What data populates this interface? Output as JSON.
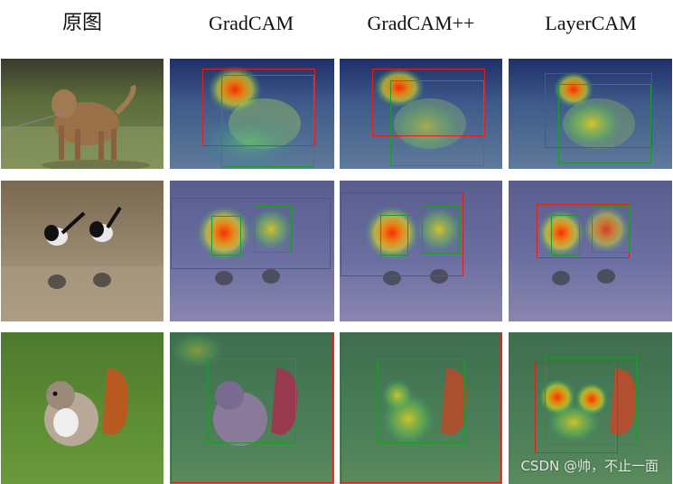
{
  "columns": [
    {
      "title": "原图"
    },
    {
      "title": "GradCAM"
    },
    {
      "title": "GradCAM++"
    },
    {
      "title": "LayerCAM"
    }
  ],
  "rows": [
    {
      "subject": "dog"
    },
    {
      "subject": "magpies"
    },
    {
      "subject": "squirrel"
    }
  ],
  "watermark": "CSDN @帅，不止一面"
}
